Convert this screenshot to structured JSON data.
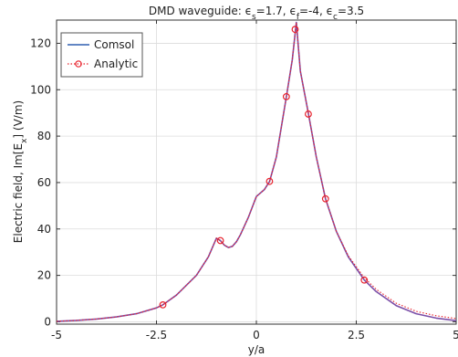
{
  "chart_data": {
    "type": "line",
    "title_parts": [
      {
        "t": "DMD waveguide: ",
        "sub": false
      },
      {
        "t": "ϵ",
        "sub": false
      },
      {
        "t": "s",
        "sub": true
      },
      {
        "t": "=1.7, ",
        "sub": false
      },
      {
        "t": "ϵ",
        "sub": false
      },
      {
        "t": "f",
        "sub": true
      },
      {
        "t": "=-4, ",
        "sub": false
      },
      {
        "t": "ϵ",
        "sub": false
      },
      {
        "t": "c",
        "sub": true
      },
      {
        "t": "=3.5",
        "sub": false
      }
    ],
    "xlabel": "y/a",
    "ylabel_parts": [
      {
        "t": "Electric field, Im[E",
        "sub": false
      },
      {
        "t": "x",
        "sub": true
      },
      {
        "t": "] (V/m)",
        "sub": false
      }
    ],
    "xlim": [
      -5,
      5
    ],
    "ylim": [
      -1,
      130
    ],
    "xticks": [
      -5,
      -2.5,
      0,
      2.5,
      5
    ],
    "xtick_labels": [
      "-5",
      "-2.5",
      "0",
      "2.5",
      "5"
    ],
    "yticks": [
      0,
      20,
      40,
      60,
      80,
      100,
      120
    ],
    "ytick_labels": [
      "0",
      "20",
      "40",
      "60",
      "80",
      "100",
      "120"
    ],
    "grid": true,
    "legend_position": "top-left",
    "legend": [
      "Comsol",
      "Analytic"
    ],
    "series": [
      {
        "name": "Comsol",
        "style": "solid",
        "color": "#7b4fa8",
        "x": [
          -5,
          -4.5,
          -4,
          -3.5,
          -3,
          -2.5,
          -2.34,
          -2,
          -1.5,
          -1.2,
          -1.0,
          -0.9,
          -0.8,
          -0.7,
          -0.6,
          -0.5,
          -0.4,
          -0.2,
          0,
          0.2,
          0.33,
          0.5,
          0.75,
          0.9,
          1.0,
          1.1,
          1.3,
          1.5,
          1.73,
          2.0,
          2.3,
          2.7,
          3.0,
          3.5,
          4.0,
          4.5,
          5.0
        ],
        "values": [
          0.2,
          0.6,
          1.2,
          2.1,
          3.5,
          6.0,
          7.3,
          11.5,
          20.0,
          28.0,
          36.0,
          35.0,
          33.0,
          32.0,
          32.5,
          34.5,
          37.5,
          45.0,
          54.0,
          57.0,
          60.5,
          71.0,
          97.0,
          113.0,
          129.0,
          108.0,
          90.0,
          71.0,
          53.0,
          39.0,
          28.0,
          18.0,
          13.0,
          7.0,
          3.5,
          1.6,
          0.5
        ]
      },
      {
        "name": "Analytic",
        "style": "dotted",
        "color": "#e8212b",
        "markers": true,
        "x": [
          -2.34,
          -0.9,
          0.33,
          0.75,
          0.97,
          1.3,
          1.73,
          2.7
        ],
        "values": [
          7.3,
          35.0,
          60.5,
          97.0,
          126.0,
          89.5,
          53.0,
          18.0
        ],
        "x_line": [
          -5,
          -4.5,
          -4,
          -3.5,
          -3,
          -2.5,
          -2.34,
          -2,
          -1.5,
          -1.2,
          -1.0,
          -0.9,
          -0.8,
          -0.7,
          -0.6,
          -0.5,
          -0.4,
          -0.2,
          0,
          0.2,
          0.33,
          0.5,
          0.75,
          0.9,
          1.0,
          1.1,
          1.3,
          1.5,
          1.73,
          2.0,
          2.3,
          2.7,
          3.0,
          3.5,
          4.0,
          4.5,
          5.0
        ],
        "values_line": [
          0.2,
          0.6,
          1.2,
          2.1,
          3.5,
          6.0,
          7.3,
          11.5,
          20.0,
          28.0,
          36.0,
          35.0,
          33.0,
          32.0,
          32.5,
          34.5,
          37.5,
          45.0,
          54.0,
          57.0,
          60.5,
          71.0,
          97.0,
          113.0,
          129.0,
          108.0,
          90.0,
          71.0,
          53.0,
          39.0,
          28.5,
          19.0,
          14.0,
          8.0,
          4.5,
          2.6,
          1.4
        ]
      }
    ]
  },
  "legend_colors": {
    "comsol_line": "#2f5fb0",
    "analytic_line": "#e8212b"
  }
}
